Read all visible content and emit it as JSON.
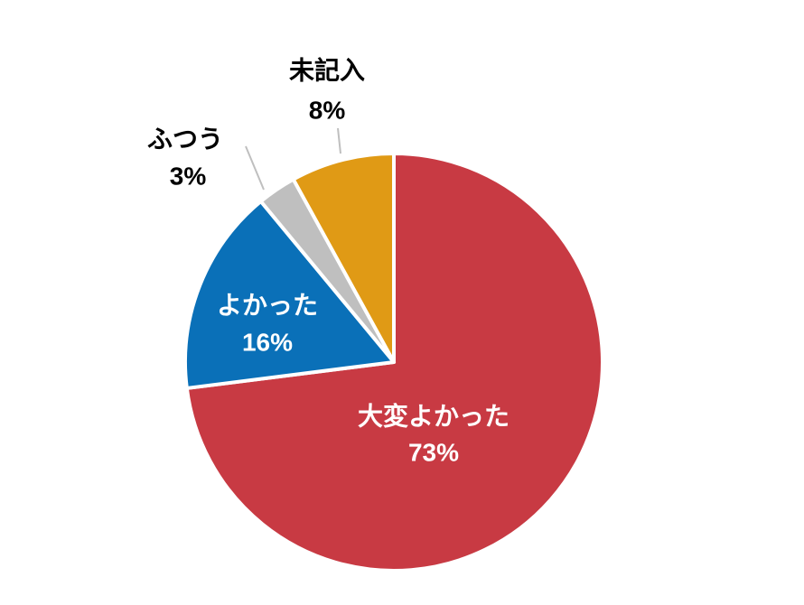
{
  "chart_data": {
    "type": "pie",
    "categories": [
      "大変よかった",
      "よかった",
      "ふつう",
      "未記入"
    ],
    "values": [
      73,
      16,
      3,
      8
    ],
    "value_labels": [
      "73%",
      "16%",
      "3%",
      "8%"
    ],
    "colors": [
      "#c83a43",
      "#0a70b8",
      "#bfbfbf",
      "#e09a15"
    ]
  }
}
